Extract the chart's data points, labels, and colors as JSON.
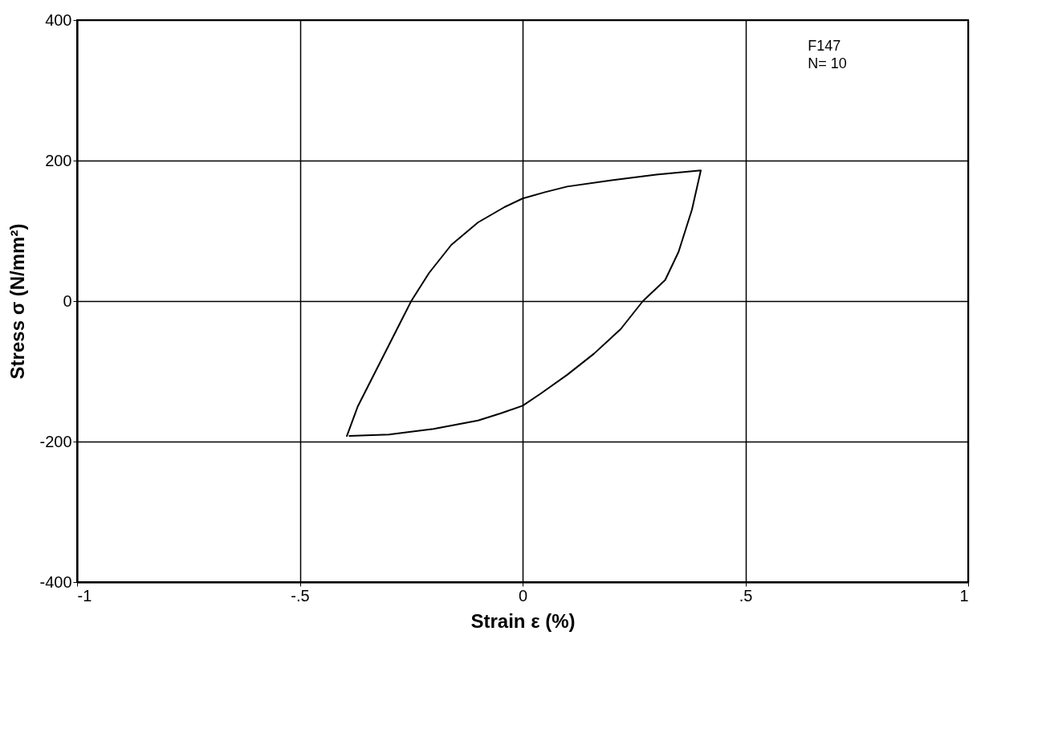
{
  "chart_data": {
    "type": "line",
    "xlabel": "Strain ε (%)",
    "ylabel": "Stress σ (N/mm²)",
    "annotations": [
      "F147",
      "N= 10"
    ],
    "xlim": [
      -1,
      1
    ],
    "xticks": [
      -1,
      {
        "value": -0.5,
        "label": "-.5"
      },
      0,
      {
        "value": 0.5,
        "label": ".5"
      },
      1
    ],
    "ylim": [
      -400,
      400
    ],
    "yticks": [
      -400,
      -200,
      0,
      200,
      400
    ],
    "grid": true,
    "series": [
      {
        "color": "#000000",
        "x": [
          -0.395,
          -0.37,
          -0.33,
          -0.29,
          -0.25,
          -0.21,
          -0.16,
          -0.1,
          -0.04,
          0,
          0.05,
          0.1,
          0.2,
          0.3,
          0.4,
          0.38,
          0.35,
          0.32,
          0.27,
          0.22,
          0.16,
          0.1,
          0.04,
          0,
          -0.05,
          -0.1,
          -0.2,
          -0.3,
          -0.39
        ],
        "values": [
          -193,
          -150,
          -100,
          -50,
          0,
          40,
          80,
          112,
          134,
          146,
          155,
          163,
          172,
          180,
          186,
          130,
          70,
          30,
          0,
          -40,
          -75,
          -105,
          -132,
          -149,
          -160,
          -170,
          -182,
          -190,
          -192
        ]
      }
    ]
  }
}
